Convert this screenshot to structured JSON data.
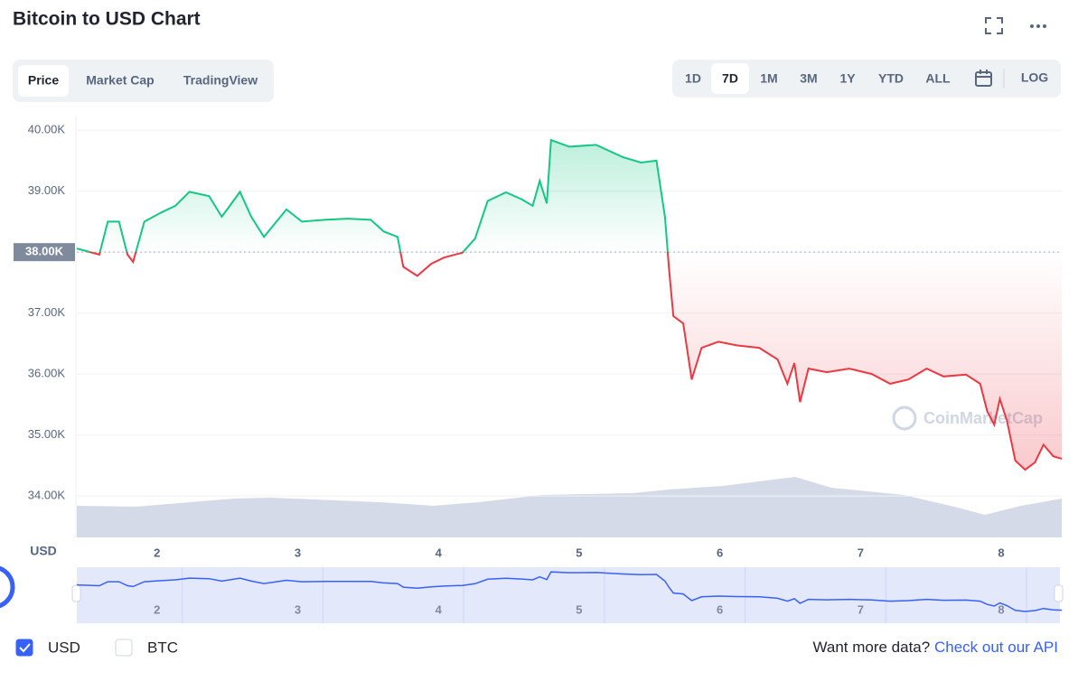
{
  "header": {
    "title": "Bitcoin to USD Chart"
  },
  "tabs": [
    "Price",
    "Market Cap",
    "TradingView"
  ],
  "active_tab": 0,
  "ranges": [
    "1D",
    "7D",
    "1M",
    "3M",
    "1Y",
    "YTD",
    "ALL"
  ],
  "active_range": 1,
  "log_label": "LOG",
  "chart_data": {
    "type": "line",
    "x": [
      1.43,
      1.59,
      1.65,
      1.73,
      1.79,
      1.83,
      1.91,
      2.03,
      2.13,
      2.23,
      2.37,
      2.46,
      2.59,
      2.67,
      2.76,
      2.92,
      3.03,
      3.19,
      3.36,
      3.52,
      3.61,
      3.71,
      3.75,
      3.85,
      3.95,
      4.04,
      4.17,
      4.26,
      4.35,
      4.48,
      4.59,
      4.67,
      4.72,
      4.77,
      4.8,
      4.93,
      5.12,
      5.31,
      5.44,
      5.55,
      5.61,
      5.64,
      5.67,
      5.74,
      5.8,
      5.87,
      5.99,
      6.12,
      6.28,
      6.41,
      6.48,
      6.53,
      6.57,
      6.63,
      6.76,
      6.92,
      7.08,
      7.21,
      7.34,
      7.47,
      7.59,
      7.75,
      7.85,
      7.9,
      7.95,
      7.99,
      8.04,
      8.1,
      8.17,
      8.24,
      8.3,
      8.37,
      8.43
    ],
    "values": [
      38060,
      37960,
      38500,
      38500,
      37960,
      37840,
      38500,
      38650,
      38760,
      38990,
      38920,
      38580,
      38990,
      38580,
      38250,
      38700,
      38500,
      38530,
      38550,
      38530,
      38340,
      38250,
      37760,
      37610,
      37810,
      37910,
      37990,
      38220,
      38840,
      38980,
      38870,
      38760,
      39170,
      38800,
      39840,
      39730,
      39760,
      39560,
      39470,
      39500,
      38580,
      37690,
      36950,
      36830,
      35910,
      36430,
      36530,
      36470,
      36430,
      36240,
      35840,
      36180,
      35540,
      36090,
      36030,
      36090,
      36000,
      35840,
      35910,
      36090,
      35960,
      35990,
      35840,
      35390,
      35170,
      35590,
      35240,
      34580,
      34430,
      34550,
      34840,
      34650,
      34610
    ],
    "xlim": [
      1.43,
      8.43
    ],
    "xticks": [
      2,
      3,
      4,
      5,
      6,
      7,
      8
    ],
    "ylim": [
      33320,
      40240
    ],
    "yticks": [
      {
        "value": 34000,
        "label": "34.00K"
      },
      {
        "value": 35000,
        "label": "35.00K"
      },
      {
        "value": 36000,
        "label": "36.00K"
      },
      {
        "value": 37000,
        "label": "37.00K"
      },
      {
        "value": 38000,
        "label": "38.00K"
      },
      {
        "value": 39000,
        "label": "39.00K"
      },
      {
        "value": 40000,
        "label": "40.00K"
      }
    ],
    "baseline": {
      "value": 38000,
      "label": "38.00K"
    },
    "color_up": "#16c784",
    "color_down": "#ea3943",
    "navigator_color": "#3861fb",
    "grid": true,
    "y_unit": "USD",
    "watermark": "CoinMarketCap"
  },
  "currencies": [
    {
      "label": "USD",
      "checked": true
    },
    {
      "label": "BTC",
      "checked": false
    }
  ],
  "footer": {
    "prompt": "Want more data?",
    "link": "Check out our API"
  }
}
